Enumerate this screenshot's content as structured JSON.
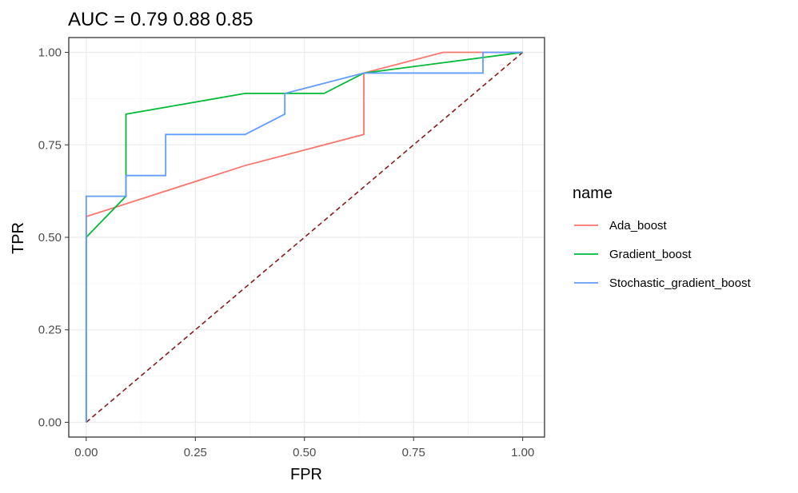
{
  "chart_data": {
    "type": "line",
    "title": "AUC = 0.79   0.88   0.85",
    "xlabel": "FPR",
    "ylabel": "TPR",
    "xlim": [
      -0.04,
      1.05
    ],
    "ylim": [
      -0.04,
      1.04
    ],
    "x_ticks": [
      0.0,
      0.25,
      0.5,
      0.75,
      1.0
    ],
    "x_tick_labels": [
      "0.00",
      "0.25",
      "0.50",
      "0.75",
      "1.00"
    ],
    "y_ticks": [
      0.0,
      0.25,
      0.5,
      0.75,
      1.0
    ],
    "y_tick_labels": [
      "0.00",
      "0.25",
      "0.50",
      "0.75",
      "1.00"
    ],
    "grid": true,
    "legend": {
      "title": "name",
      "placement": "right"
    },
    "series": [
      {
        "name": "Ada_boost",
        "color": "#F8766D",
        "points": [
          [
            0,
            0
          ],
          [
            0,
            0.556
          ],
          [
            0.364,
            0.694
          ],
          [
            0.455,
            0.722
          ],
          [
            0.636,
            0.778
          ],
          [
            0.636,
            0.944
          ],
          [
            0.818,
            1.0
          ],
          [
            1.0,
            1.0
          ]
        ]
      },
      {
        "name": "Gradient_boost",
        "color": "#00BA38",
        "points": [
          [
            0,
            0
          ],
          [
            0,
            0.5
          ],
          [
            0.091,
            0.611
          ],
          [
            0.091,
            0.833
          ],
          [
            0.364,
            0.889
          ],
          [
            0.545,
            0.889
          ],
          [
            0.636,
            0.944
          ],
          [
            1.0,
            1.0
          ]
        ]
      },
      {
        "name": "Stochastic_gradient_boost",
        "color": "#619CFF",
        "points": [
          [
            0,
            0
          ],
          [
            0,
            0.611
          ],
          [
            0.091,
            0.611
          ],
          [
            0.091,
            0.667
          ],
          [
            0.182,
            0.667
          ],
          [
            0.182,
            0.778
          ],
          [
            0.364,
            0.778
          ],
          [
            0.455,
            0.833
          ],
          [
            0.455,
            0.889
          ],
          [
            0.636,
            0.944
          ],
          [
            0.909,
            0.944
          ],
          [
            0.909,
            1.0
          ],
          [
            1.0,
            1.0
          ]
        ]
      }
    ],
    "reference_line": {
      "points": [
        [
          0,
          0
        ],
        [
          1,
          1
        ]
      ],
      "color": "#8B1A1A",
      "style": "dashed"
    }
  }
}
